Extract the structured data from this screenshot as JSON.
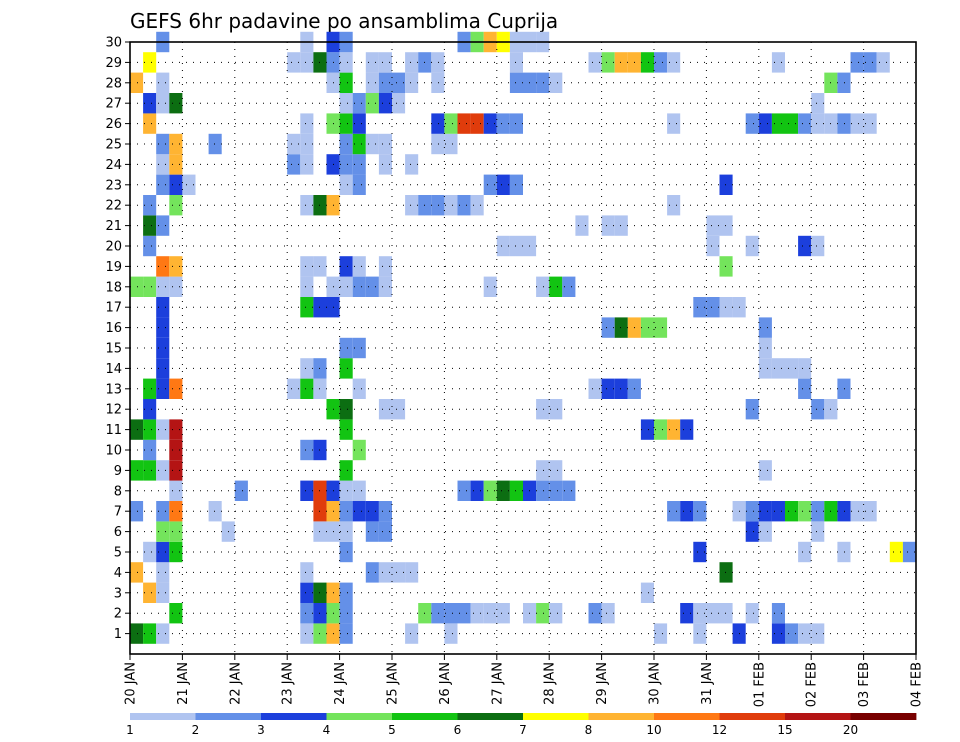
{
  "chart_data": {
    "type": "heatmap",
    "title": "GEFS 6hr padavine po ansamblima Cuprija",
    "xlabel": "",
    "ylabel": "",
    "x_ticks": [
      "20 JAN",
      "21 JAN",
      "22 JAN",
      "23 JAN",
      "24 JAN",
      "25 JAN",
      "26 JAN",
      "27 JAN",
      "28 JAN",
      "29 JAN",
      "30 JAN",
      "31 JAN",
      "01 FEB",
      "02 FEB",
      "03 FEB",
      "04 FEB"
    ],
    "y_ticks": [
      1,
      2,
      3,
      4,
      5,
      6,
      7,
      8,
      9,
      10,
      11,
      12,
      13,
      14,
      15,
      16,
      17,
      18,
      19,
      20,
      21,
      22,
      23,
      24,
      25,
      26,
      27,
      28,
      29,
      30
    ],
    "x_range": [
      0,
      60
    ],
    "y_range": [
      0,
      30
    ],
    "grid": true,
    "legend_position": "bottom",
    "colorbar": {
      "labels": [
        "1",
        "2",
        "3",
        "4",
        "5",
        "6",
        "7",
        "8",
        "10",
        "12",
        "15",
        "20"
      ],
      "colors": [
        "#b0c4f0",
        "#6490e8",
        "#1c3fdc",
        "#74e45c",
        "#12c412",
        "#0c6e12",
        "#ffff00",
        "#ffb432",
        "#ff7814",
        "#e03c0c",
        "#b41414",
        "#780000"
      ]
    },
    "x_unit": "6-hour step from 20 JAN 00Z",
    "y_unit": "ensemble member",
    "value_unit": "color class index 1-12",
    "cells": [
      [
        0.5,
        1,
        6
      ],
      [
        1.5,
        1,
        5
      ],
      [
        2.5,
        1,
        1
      ],
      [
        13.5,
        1,
        1
      ],
      [
        14.5,
        1,
        4
      ],
      [
        15.5,
        1,
        8
      ],
      [
        16.5,
        1,
        2
      ],
      [
        21.5,
        1,
        1
      ],
      [
        24.5,
        1,
        1
      ],
      [
        40.5,
        1,
        1
      ],
      [
        43.5,
        1,
        1
      ],
      [
        46.5,
        1,
        3
      ],
      [
        49.5,
        1,
        3
      ],
      [
        50.5,
        1,
        2
      ],
      [
        51.5,
        1,
        1
      ],
      [
        52.5,
        1,
        1
      ],
      [
        3.5,
        2,
        5
      ],
      [
        13.5,
        2,
        2
      ],
      [
        14.5,
        2,
        3
      ],
      [
        15.5,
        2,
        4
      ],
      [
        16.5,
        2,
        2
      ],
      [
        22.5,
        2,
        4
      ],
      [
        23.5,
        2,
        2
      ],
      [
        24.5,
        2,
        2
      ],
      [
        25.5,
        2,
        2
      ],
      [
        26.5,
        2,
        1
      ],
      [
        27.5,
        2,
        1
      ],
      [
        28.5,
        2,
        1
      ],
      [
        30.5,
        2,
        1
      ],
      [
        31.5,
        2,
        4
      ],
      [
        32.5,
        2,
        1
      ],
      [
        35.5,
        2,
        2
      ],
      [
        36.5,
        2,
        1
      ],
      [
        42.5,
        2,
        3
      ],
      [
        43.5,
        2,
        1
      ],
      [
        44.5,
        2,
        1
      ],
      [
        45.5,
        2,
        1
      ],
      [
        47.5,
        2,
        1
      ],
      [
        49.5,
        2,
        2
      ],
      [
        1.5,
        3,
        8
      ],
      [
        2.5,
        3,
        1
      ],
      [
        13.5,
        3,
        3
      ],
      [
        14.5,
        3,
        6
      ],
      [
        15.5,
        3,
        8
      ],
      [
        16.5,
        3,
        2
      ],
      [
        39.5,
        3,
        1
      ],
      [
        0.5,
        4,
        8
      ],
      [
        2.5,
        4,
        1
      ],
      [
        13.5,
        4,
        1
      ],
      [
        18.5,
        4,
        2
      ],
      [
        19.5,
        4,
        1
      ],
      [
        20.5,
        4,
        1
      ],
      [
        21.5,
        4,
        1
      ],
      [
        45.5,
        4,
        6
      ],
      [
        1.5,
        5,
        1
      ],
      [
        2.5,
        5,
        3
      ],
      [
        3.5,
        5,
        5
      ],
      [
        16.5,
        5,
        2
      ],
      [
        43.5,
        5,
        3
      ],
      [
        51.5,
        5,
        1
      ],
      [
        54.5,
        5,
        1
      ],
      [
        58.5,
        5,
        7
      ],
      [
        59.5,
        5,
        2
      ],
      [
        2.5,
        6,
        4
      ],
      [
        3.5,
        6,
        4
      ],
      [
        7.5,
        6,
        1
      ],
      [
        14.5,
        6,
        1
      ],
      [
        15.5,
        6,
        1
      ],
      [
        16.5,
        6,
        1
      ],
      [
        18.5,
        6,
        2
      ],
      [
        19.5,
        6,
        2
      ],
      [
        47.5,
        6,
        3
      ],
      [
        48.5,
        6,
        1
      ],
      [
        52.5,
        6,
        1
      ],
      [
        0.5,
        7,
        2
      ],
      [
        2.5,
        7,
        2
      ],
      [
        3.5,
        7,
        9
      ],
      [
        6.5,
        7,
        1
      ],
      [
        14.5,
        7,
        10
      ],
      [
        15.5,
        7,
        8
      ],
      [
        16.5,
        7,
        2
      ],
      [
        17.5,
        7,
        3
      ],
      [
        18.5,
        7,
        3
      ],
      [
        19.5,
        7,
        2
      ],
      [
        41.5,
        7,
        2
      ],
      [
        42.5,
        7,
        3
      ],
      [
        43.5,
        7,
        2
      ],
      [
        46.5,
        7,
        1
      ],
      [
        47.5,
        7,
        2
      ],
      [
        48.5,
        7,
        3
      ],
      [
        49.5,
        7,
        3
      ],
      [
        50.5,
        7,
        5
      ],
      [
        51.5,
        7,
        4
      ],
      [
        52.5,
        7,
        2
      ],
      [
        53.5,
        7,
        5
      ],
      [
        54.5,
        7,
        3
      ],
      [
        55.5,
        7,
        1
      ],
      [
        56.5,
        7,
        1
      ],
      [
        3.5,
        8,
        1
      ],
      [
        8.5,
        8,
        2
      ],
      [
        13.5,
        8,
        3
      ],
      [
        14.5,
        8,
        10
      ],
      [
        15.5,
        8,
        3
      ],
      [
        16.5,
        8,
        1
      ],
      [
        17.5,
        8,
        1
      ],
      [
        25.5,
        8,
        2
      ],
      [
        26.5,
        8,
        3
      ],
      [
        27.5,
        8,
        4
      ],
      [
        28.5,
        8,
        6
      ],
      [
        29.5,
        8,
        5
      ],
      [
        30.5,
        8,
        3
      ],
      [
        31.5,
        8,
        2
      ],
      [
        32.5,
        8,
        2
      ],
      [
        33.5,
        8,
        2
      ],
      [
        0.5,
        9,
        5
      ],
      [
        1.5,
        9,
        5
      ],
      [
        2.5,
        9,
        1
      ],
      [
        3.5,
        9,
        11
      ],
      [
        16.5,
        9,
        5
      ],
      [
        31.5,
        9,
        1
      ],
      [
        32.5,
        9,
        1
      ],
      [
        48.5,
        9,
        1
      ],
      [
        1.5,
        10,
        2
      ],
      [
        3.5,
        10,
        11
      ],
      [
        13.5,
        10,
        2
      ],
      [
        14.5,
        10,
        3
      ],
      [
        17.5,
        10,
        4
      ],
      [
        0.5,
        11,
        6
      ],
      [
        1.5,
        11,
        5
      ],
      [
        2.5,
        11,
        1
      ],
      [
        3.5,
        11,
        11
      ],
      [
        16.5,
        11,
        5
      ],
      [
        39.5,
        11,
        3
      ],
      [
        40.5,
        11,
        4
      ],
      [
        41.5,
        11,
        8
      ],
      [
        42.5,
        11,
        3
      ],
      [
        1.5,
        12,
        3
      ],
      [
        15.5,
        12,
        5
      ],
      [
        16.5,
        12,
        6
      ],
      [
        19.5,
        12,
        1
      ],
      [
        20.5,
        12,
        1
      ],
      [
        31.5,
        12,
        1
      ],
      [
        32.5,
        12,
        1
      ],
      [
        47.5,
        12,
        2
      ],
      [
        52.5,
        12,
        2
      ],
      [
        53.5,
        12,
        1
      ],
      [
        1.5,
        13,
        5
      ],
      [
        2.5,
        13,
        3
      ],
      [
        3.5,
        13,
        9
      ],
      [
        12.5,
        13,
        1
      ],
      [
        13.5,
        13,
        5
      ],
      [
        14.5,
        13,
        1
      ],
      [
        17.5,
        13,
        1
      ],
      [
        35.5,
        13,
        1
      ],
      [
        36.5,
        13,
        3
      ],
      [
        37.5,
        13,
        3
      ],
      [
        38.5,
        13,
        2
      ],
      [
        51.5,
        13,
        2
      ],
      [
        54.5,
        13,
        2
      ],
      [
        2.5,
        14,
        3
      ],
      [
        13.5,
        14,
        1
      ],
      [
        14.5,
        14,
        2
      ],
      [
        16.5,
        14,
        5
      ],
      [
        48.5,
        14,
        1
      ],
      [
        49.5,
        14,
        1
      ],
      [
        50.5,
        14,
        1
      ],
      [
        51.5,
        14,
        1
      ],
      [
        2.5,
        15,
        3
      ],
      [
        16.5,
        15,
        2
      ],
      [
        17.5,
        15,
        2
      ],
      [
        48.5,
        15,
        1
      ],
      [
        2.5,
        16,
        3
      ],
      [
        36.5,
        16,
        2
      ],
      [
        37.5,
        16,
        6
      ],
      [
        38.5,
        16,
        8
      ],
      [
        39.5,
        16,
        4
      ],
      [
        40.5,
        16,
        4
      ],
      [
        48.5,
        16,
        2
      ],
      [
        2.5,
        17,
        3
      ],
      [
        13.5,
        17,
        5
      ],
      [
        14.5,
        17,
        3
      ],
      [
        15.5,
        17,
        3
      ],
      [
        43.5,
        17,
        2
      ],
      [
        44.5,
        17,
        2
      ],
      [
        45.5,
        17,
        1
      ],
      [
        46.5,
        17,
        1
      ],
      [
        0.5,
        18,
        4
      ],
      [
        1.5,
        18,
        4
      ],
      [
        2.5,
        18,
        1
      ],
      [
        3.5,
        18,
        1
      ],
      [
        13.5,
        18,
        1
      ],
      [
        15.5,
        18,
        1
      ],
      [
        16.5,
        18,
        1
      ],
      [
        17.5,
        18,
        2
      ],
      [
        18.5,
        18,
        2
      ],
      [
        19.5,
        18,
        1
      ],
      [
        27.5,
        18,
        1
      ],
      [
        31.5,
        18,
        1
      ],
      [
        32.5,
        18,
        5
      ],
      [
        33.5,
        18,
        2
      ],
      [
        2.5,
        19,
        9
      ],
      [
        3.5,
        19,
        8
      ],
      [
        13.5,
        19,
        1
      ],
      [
        14.5,
        19,
        1
      ],
      [
        16.5,
        19,
        3
      ],
      [
        17.5,
        19,
        1
      ],
      [
        19.5,
        19,
        1
      ],
      [
        45.5,
        19,
        4
      ],
      [
        1.5,
        20,
        2
      ],
      [
        28.5,
        20,
        1
      ],
      [
        29.5,
        20,
        1
      ],
      [
        30.5,
        20,
        1
      ],
      [
        44.5,
        20,
        1
      ],
      [
        47.5,
        20,
        1
      ],
      [
        51.5,
        20,
        3
      ],
      [
        52.5,
        20,
        1
      ],
      [
        1.5,
        21,
        6
      ],
      [
        2.5,
        21,
        2
      ],
      [
        34.5,
        21,
        1
      ],
      [
        36.5,
        21,
        1
      ],
      [
        37.5,
        21,
        1
      ],
      [
        44.5,
        21,
        1
      ],
      [
        45.5,
        21,
        1
      ],
      [
        1.5,
        22,
        2
      ],
      [
        3.5,
        22,
        4
      ],
      [
        13.5,
        22,
        1
      ],
      [
        14.5,
        22,
        6
      ],
      [
        15.5,
        22,
        8
      ],
      [
        21.5,
        22,
        1
      ],
      [
        22.5,
        22,
        2
      ],
      [
        23.5,
        22,
        2
      ],
      [
        24.5,
        22,
        1
      ],
      [
        25.5,
        22,
        2
      ],
      [
        26.5,
        22,
        1
      ],
      [
        41.5,
        22,
        1
      ],
      [
        2.5,
        23,
        2
      ],
      [
        3.5,
        23,
        3
      ],
      [
        4.5,
        23,
        1
      ],
      [
        16.5,
        23,
        1
      ],
      [
        17.5,
        23,
        2
      ],
      [
        27.5,
        23,
        2
      ],
      [
        28.5,
        23,
        3
      ],
      [
        29.5,
        23,
        2
      ],
      [
        45.5,
        23,
        3
      ],
      [
        2.5,
        24,
        1
      ],
      [
        3.5,
        24,
        8
      ],
      [
        12.5,
        24,
        2
      ],
      [
        13.5,
        24,
        1
      ],
      [
        15.5,
        24,
        3
      ],
      [
        16.5,
        24,
        2
      ],
      [
        17.5,
        24,
        2
      ],
      [
        19.5,
        24,
        1
      ],
      [
        21.5,
        24,
        1
      ],
      [
        2.5,
        25,
        2
      ],
      [
        3.5,
        25,
        8
      ],
      [
        6.5,
        25,
        2
      ],
      [
        12.5,
        25,
        1
      ],
      [
        13.5,
        25,
        1
      ],
      [
        16.5,
        25,
        2
      ],
      [
        17.5,
        25,
        5
      ],
      [
        18.5,
        25,
        1
      ],
      [
        19.5,
        25,
        1
      ],
      [
        23.5,
        25,
        1
      ],
      [
        24.5,
        25,
        1
      ],
      [
        1.5,
        26,
        8
      ],
      [
        13.5,
        26,
        1
      ],
      [
        15.5,
        26,
        4
      ],
      [
        16.5,
        26,
        5
      ],
      [
        17.5,
        26,
        3
      ],
      [
        23.5,
        26,
        3
      ],
      [
        24.5,
        26,
        4
      ],
      [
        25.5,
        26,
        10
      ],
      [
        26.5,
        26,
        10
      ],
      [
        27.5,
        26,
        3
      ],
      [
        28.5,
        26,
        2
      ],
      [
        29.5,
        26,
        2
      ],
      [
        41.5,
        26,
        1
      ],
      [
        47.5,
        26,
        2
      ],
      [
        48.5,
        26,
        3
      ],
      [
        49.5,
        26,
        5
      ],
      [
        50.5,
        26,
        5
      ],
      [
        51.5,
        26,
        2
      ],
      [
        52.5,
        26,
        1
      ],
      [
        53.5,
        26,
        1
      ],
      [
        54.5,
        26,
        2
      ],
      [
        55.5,
        26,
        1
      ],
      [
        56.5,
        26,
        1
      ],
      [
        1.5,
        27,
        3
      ],
      [
        2.5,
        27,
        1
      ],
      [
        3.5,
        27,
        6
      ],
      [
        16.5,
        27,
        1
      ],
      [
        17.5,
        27,
        2
      ],
      [
        18.5,
        27,
        4
      ],
      [
        19.5,
        27,
        3
      ],
      [
        20.5,
        27,
        1
      ],
      [
        52.5,
        27,
        1
      ],
      [
        0.5,
        28,
        8
      ],
      [
        2.5,
        28,
        1
      ],
      [
        15.5,
        28,
        1
      ],
      [
        16.5,
        28,
        5
      ],
      [
        18.5,
        28,
        1
      ],
      [
        19.5,
        28,
        2
      ],
      [
        20.5,
        28,
        2
      ],
      [
        21.5,
        28,
        1
      ],
      [
        23.5,
        28,
        1
      ],
      [
        29.5,
        28,
        2
      ],
      [
        30.5,
        28,
        2
      ],
      [
        31.5,
        28,
        2
      ],
      [
        32.5,
        28,
        1
      ],
      [
        53.5,
        28,
        4
      ],
      [
        54.5,
        28,
        2
      ],
      [
        1.5,
        29,
        7
      ],
      [
        12.5,
        29,
        1
      ],
      [
        13.5,
        29,
        1
      ],
      [
        14.5,
        29,
        6
      ],
      [
        15.5,
        29,
        2
      ],
      [
        16.5,
        29,
        1
      ],
      [
        18.5,
        29,
        1
      ],
      [
        19.5,
        29,
        1
      ],
      [
        21.5,
        29,
        1
      ],
      [
        22.5,
        29,
        2
      ],
      [
        23.5,
        29,
        1
      ],
      [
        29.5,
        29,
        1
      ],
      [
        35.5,
        29,
        1
      ],
      [
        36.5,
        29,
        4
      ],
      [
        37.5,
        29,
        8
      ],
      [
        38.5,
        29,
        8
      ],
      [
        39.5,
        29,
        5
      ],
      [
        40.5,
        29,
        2
      ],
      [
        41.5,
        29,
        1
      ],
      [
        49.5,
        29,
        1
      ],
      [
        55.5,
        29,
        2
      ],
      [
        56.5,
        29,
        2
      ],
      [
        57.5,
        29,
        1
      ],
      [
        2.5,
        30,
        2
      ],
      [
        13.5,
        30,
        1
      ],
      [
        15.5,
        30,
        3
      ],
      [
        16.5,
        30,
        2
      ],
      [
        25.5,
        30,
        2
      ],
      [
        26.5,
        30,
        4
      ],
      [
        27.5,
        30,
        8
      ],
      [
        28.5,
        30,
        7
      ],
      [
        29.5,
        30,
        1
      ],
      [
        30.5,
        30,
        1
      ],
      [
        31.5,
        30,
        1
      ]
    ]
  }
}
